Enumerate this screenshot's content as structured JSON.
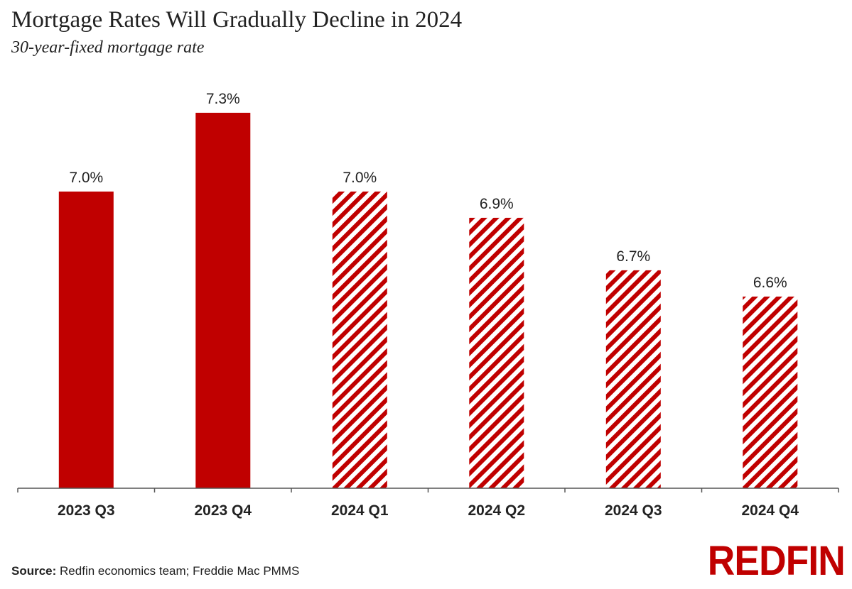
{
  "colors": {
    "bar": "#c00000",
    "text": "#222222",
    "axis": "#555555"
  },
  "footer": {
    "source_label": "Source:",
    "source_text": "Redfin economics team; Freddie Mac PMMS",
    "brand": "REDFIN"
  },
  "chart_data": {
    "type": "bar",
    "title": "Mortgage Rates Will Gradually Decline in 2024",
    "subtitle": "30-year-fixed mortgage rate",
    "xlabel": "",
    "ylabel": "",
    "ylim": [
      0,
      7.3
    ],
    "grid": false,
    "categories": [
      "2023 Q3",
      "2023 Q4",
      "2024 Q1",
      "2024 Q2",
      "2024 Q3",
      "2024 Q4"
    ],
    "values": [
      7.0,
      7.3,
      7.0,
      6.9,
      6.7,
      6.6
    ],
    "value_labels": [
      "7.0%",
      "7.3%",
      "7.0%",
      "6.9%",
      "6.7%",
      "6.6%"
    ],
    "styles": [
      "actual",
      "actual",
      "forecast",
      "forecast",
      "forecast",
      "forecast"
    ]
  }
}
